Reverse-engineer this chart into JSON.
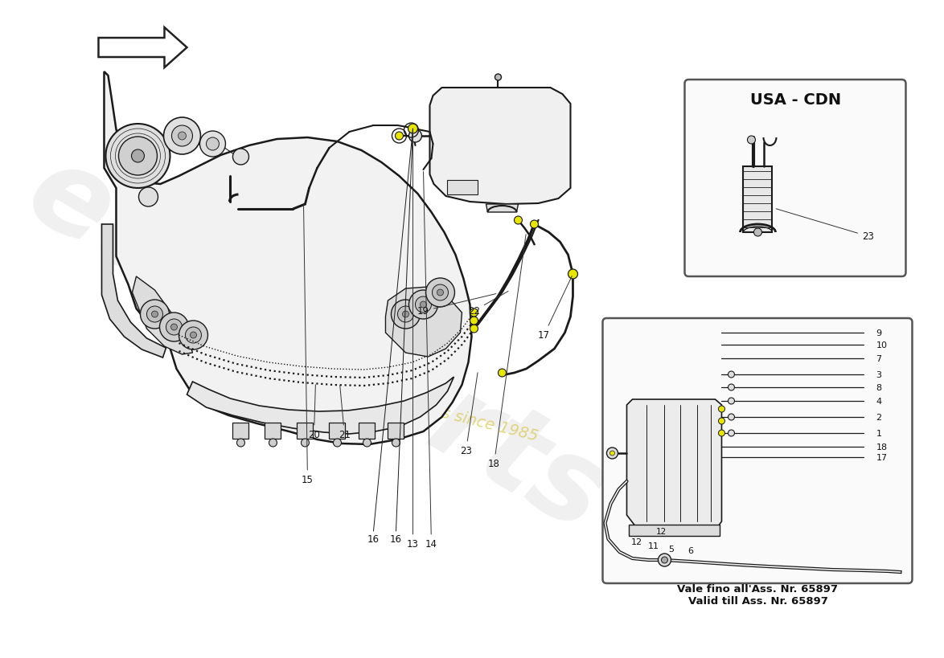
{
  "bg": "#ffffff",
  "lc": "#1a1a1a",
  "lw": 1.3,
  "yellow": "#e8e600",
  "gray_fill": "#e8e8e8",
  "dark_gray": "#aaaaaa",
  "inset1_caption_line1": "Vale fino all'Ass. Nr. 65897",
  "inset1_caption_line2": "Valid till Ass. Nr. 65897",
  "inset2_caption": "USA - CDN",
  "wm_text": "a passion for motor parts since 1985",
  "wm_color": "#d4c030",
  "brand": "europarts",
  "brand_color": "#bbbbbb",
  "fs": 8.5
}
